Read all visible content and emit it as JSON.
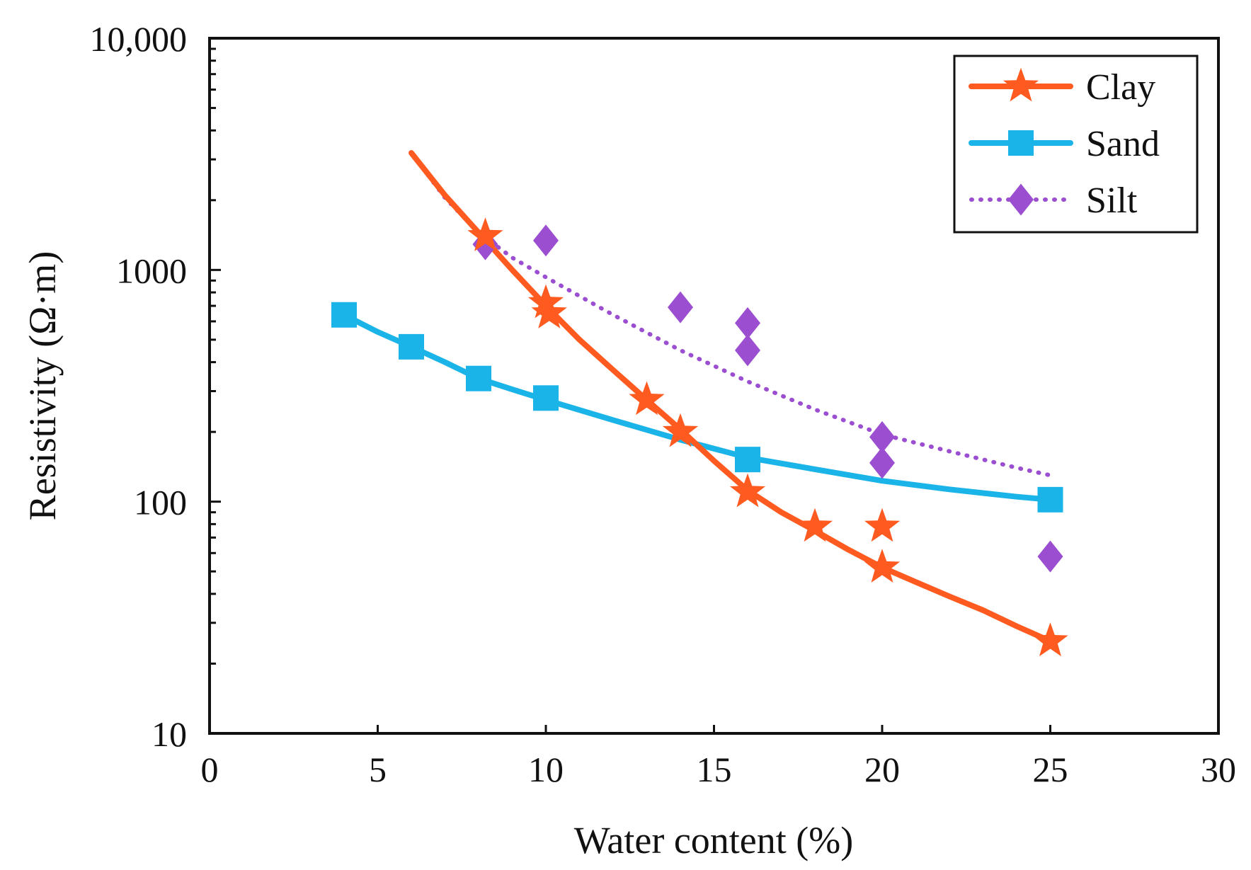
{
  "chart_data": {
    "type": "scatter",
    "title": "",
    "xlabel": "Water content (%)",
    "ylabel": "Resistivity (Ω·m)",
    "xlim": [
      0,
      30
    ],
    "ylim": [
      10,
      10000
    ],
    "yscale": "log",
    "grid": false,
    "legend_position": "top-right",
    "x_ticks": [
      0,
      5,
      10,
      15,
      20,
      25,
      30
    ],
    "x_tick_labels": [
      "0",
      "5",
      "10",
      "15",
      "20",
      "25",
      "30"
    ],
    "y_ticks": [
      10,
      100,
      1000,
      10000
    ],
    "y_tick_labels": [
      "10",
      "100",
      "1000",
      "10,000"
    ],
    "series": [
      {
        "name": "Clay",
        "color": "#ff5a1f",
        "marker": "star",
        "line": "solid",
        "points": [
          [
            8.2,
            1400
          ],
          [
            10,
            720
          ],
          [
            10.1,
            650
          ],
          [
            13,
            275
          ],
          [
            14,
            200
          ],
          [
            16,
            110
          ],
          [
            18,
            78
          ],
          [
            20,
            78
          ],
          [
            20,
            52
          ],
          [
            25,
            25
          ]
        ],
        "fit": [
          [
            6,
            3200
          ],
          [
            7,
            2100
          ],
          [
            8,
            1450
          ],
          [
            9,
            1000
          ],
          [
            10,
            700
          ],
          [
            11,
            500
          ],
          [
            12,
            370
          ],
          [
            13,
            275
          ],
          [
            14,
            205
          ],
          [
            15,
            150
          ],
          [
            16,
            112
          ],
          [
            17,
            90
          ],
          [
            18,
            75
          ],
          [
            19,
            62
          ],
          [
            20,
            52
          ],
          [
            21,
            45
          ],
          [
            22,
            39
          ],
          [
            23,
            34
          ],
          [
            24,
            29
          ],
          [
            25,
            25
          ]
        ]
      },
      {
        "name": "Sand",
        "color": "#1ab4e8",
        "marker": "square",
        "line": "solid",
        "points": [
          [
            4,
            640
          ],
          [
            6,
            466
          ],
          [
            8,
            340
          ],
          [
            10,
            280
          ],
          [
            16,
            152
          ],
          [
            25,
            102
          ]
        ],
        "fit": [
          [
            4,
            640
          ],
          [
            5,
            540
          ],
          [
            6,
            466
          ],
          [
            7,
            400
          ],
          [
            8,
            340
          ],
          [
            9,
            305
          ],
          [
            10,
            275
          ],
          [
            12,
            225
          ],
          [
            14,
            185
          ],
          [
            16,
            155
          ],
          [
            18,
            138
          ],
          [
            20,
            123
          ],
          [
            22,
            113
          ],
          [
            24,
            105
          ],
          [
            25,
            102
          ]
        ]
      },
      {
        "name": "Silt",
        "color": "#9b4fd0",
        "marker": "diamond",
        "line": "dotted",
        "points": [
          [
            8.2,
            1290
          ],
          [
            10,
            1340
          ],
          [
            14,
            690
          ],
          [
            16,
            590
          ],
          [
            16,
            450
          ],
          [
            20,
            190
          ],
          [
            20,
            147
          ],
          [
            25,
            58
          ]
        ],
        "fit": [
          [
            6,
            3200
          ],
          [
            7,
            2050
          ],
          [
            8,
            1450
          ],
          [
            9,
            1130
          ],
          [
            10,
            930
          ],
          [
            12,
            640
          ],
          [
            14,
            450
          ],
          [
            16,
            330
          ],
          [
            18,
            250
          ],
          [
            20,
            195
          ],
          [
            22,
            165
          ],
          [
            24,
            140
          ],
          [
            25,
            130
          ]
        ]
      }
    ]
  }
}
